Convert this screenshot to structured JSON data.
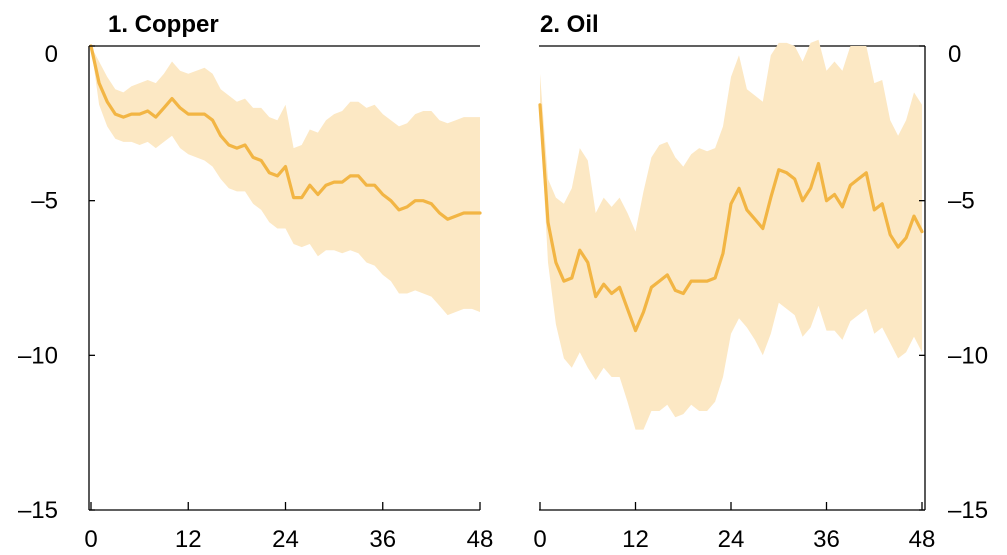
{
  "colors": {
    "line": "#F2B544",
    "band": "#FCE8C4",
    "axis": "#000000"
  },
  "chart_data": [
    {
      "type": "line",
      "title": "1. Copper",
      "y_axis_side": "left",
      "ylim": [
        -15,
        0
      ],
      "yticks": [
        0,
        -5,
        -10,
        -15
      ],
      "ytick_labels": [
        "0",
        "–5",
        "–10",
        "–15"
      ],
      "xlim": [
        0,
        48
      ],
      "xticks": [
        0,
        12,
        24,
        36,
        48
      ],
      "xtick_labels": [
        "0",
        "12",
        "24",
        "36",
        "48"
      ],
      "grid": false,
      "x": [
        0,
        1,
        2,
        3,
        4,
        5,
        6,
        7,
        8,
        9,
        10,
        11,
        12,
        13,
        14,
        15,
        16,
        17,
        18,
        19,
        20,
        21,
        22,
        23,
        24,
        25,
        26,
        27,
        28,
        29,
        30,
        31,
        32,
        33,
        34,
        35,
        36,
        37,
        38,
        39,
        40,
        41,
        42,
        43,
        44,
        45,
        46,
        47,
        48
      ],
      "series": [
        {
          "values": [
            0,
            -1.2,
            -1.8,
            -2.2,
            -2.3,
            -2.2,
            -2.2,
            -2.1,
            -2.3,
            -2.0,
            -1.7,
            -2.0,
            -2.2,
            -2.2,
            -2.2,
            -2.4,
            -2.9,
            -3.2,
            -3.3,
            -3.2,
            -3.6,
            -3.7,
            -4.1,
            -4.2,
            -3.9,
            -4.9,
            -4.9,
            -4.5,
            -4.8,
            -4.5,
            -4.4,
            -4.4,
            -4.2,
            -4.2,
            -4.5,
            -4.5,
            -4.8,
            -5.0,
            -5.3,
            -5.2,
            -5.0,
            -5.0,
            -5.1,
            -5.4,
            -5.6,
            -5.5,
            -5.4,
            -5.4,
            -5.4
          ],
          "lower": [
            0,
            -1.9,
            -2.6,
            -3.0,
            -3.1,
            -3.1,
            -3.2,
            -3.1,
            -3.3,
            -3.1,
            -2.9,
            -3.3,
            -3.5,
            -3.6,
            -3.7,
            -3.9,
            -4.3,
            -4.6,
            -4.7,
            -4.7,
            -5.1,
            -5.3,
            -5.7,
            -5.9,
            -5.9,
            -6.4,
            -6.5,
            -6.4,
            -6.8,
            -6.6,
            -6.6,
            -6.7,
            -6.6,
            -6.7,
            -7.0,
            -7.1,
            -7.4,
            -7.6,
            -8.0,
            -8.0,
            -7.9,
            -8.0,
            -8.1,
            -8.4,
            -8.7,
            -8.6,
            -8.5,
            -8.5,
            -8.6
          ],
          "upper": [
            0,
            -0.5,
            -1.0,
            -1.4,
            -1.5,
            -1.3,
            -1.2,
            -1.1,
            -1.2,
            -0.9,
            -0.5,
            -0.8,
            -0.9,
            -0.8,
            -0.7,
            -0.9,
            -1.4,
            -1.6,
            -1.8,
            -1.7,
            -2.0,
            -2.0,
            -2.3,
            -2.4,
            -1.9,
            -3.3,
            -3.2,
            -2.7,
            -2.8,
            -2.4,
            -2.2,
            -2.1,
            -1.8,
            -1.8,
            -2.0,
            -1.9,
            -2.2,
            -2.4,
            -2.6,
            -2.5,
            -2.2,
            -2.1,
            -2.1,
            -2.4,
            -2.5,
            -2.4,
            -2.3,
            -2.3,
            -2.3
          ]
        }
      ]
    },
    {
      "type": "line",
      "title": "2. Oil",
      "y_axis_side": "right",
      "ylim": [
        -15,
        0
      ],
      "yticks": [
        0,
        -5,
        -10,
        -15
      ],
      "ytick_labels": [
        "0",
        "–5",
        "–10",
        "–15"
      ],
      "xlim": [
        0,
        48
      ],
      "xticks": [
        0,
        12,
        24,
        36,
        48
      ],
      "xtick_labels": [
        "0",
        "12",
        "24",
        "36",
        "48"
      ],
      "grid": false,
      "x": [
        0,
        1,
        2,
        3,
        4,
        5,
        6,
        7,
        8,
        9,
        10,
        11,
        12,
        13,
        14,
        15,
        16,
        17,
        18,
        19,
        20,
        21,
        22,
        23,
        24,
        25,
        26,
        27,
        28,
        29,
        30,
        31,
        32,
        33,
        34,
        35,
        36,
        37,
        38,
        39,
        40,
        41,
        42,
        43,
        44,
        45,
        46,
        47,
        48
      ],
      "series": [
        {
          "values": [
            -1.9,
            -5.7,
            -7.0,
            -7.6,
            -7.5,
            -6.6,
            -7.0,
            -8.1,
            -7.7,
            -8.0,
            -7.8,
            -8.5,
            -9.2,
            -8.6,
            -7.8,
            -7.6,
            -7.4,
            -7.9,
            -8.0,
            -7.6,
            -7.6,
            -7.6,
            -7.5,
            -6.7,
            -5.1,
            -4.6,
            -5.3,
            -5.6,
            -5.9,
            -4.9,
            -4.0,
            -4.1,
            -4.3,
            -5.0,
            -4.6,
            -3.8,
            -5.0,
            -4.8,
            -5.2,
            -4.5,
            -4.3,
            -4.1,
            -5.3,
            -5.1,
            -6.1,
            -6.5,
            -6.2,
            -5.5,
            -6.0
          ],
          "lower": [
            -2.2,
            -7.0,
            -9.0,
            -10.1,
            -10.4,
            -9.9,
            -10.4,
            -10.8,
            -10.4,
            -10.7,
            -10.7,
            -11.5,
            -12.4,
            -12.4,
            -11.8,
            -11.8,
            -11.6,
            -12.0,
            -11.9,
            -11.6,
            -11.8,
            -11.8,
            -11.5,
            -10.7,
            -9.3,
            -8.8,
            -9.1,
            -9.5,
            -10.0,
            -9.3,
            -8.3,
            -8.5,
            -8.7,
            -9.4,
            -9.1,
            -8.4,
            -9.2,
            -9.2,
            -9.5,
            -8.9,
            -8.7,
            -8.5,
            -9.3,
            -9.1,
            -9.6,
            -10.1,
            -9.9,
            -9.4,
            -9.9
          ],
          "upper": [
            -0.9,
            -4.3,
            -4.9,
            -5.1,
            -4.6,
            -3.3,
            -3.7,
            -5.4,
            -4.9,
            -5.2,
            -4.9,
            -5.4,
            -6.0,
            -4.7,
            -3.6,
            -3.2,
            -3.1,
            -3.6,
            -3.9,
            -3.5,
            -3.3,
            -3.4,
            -3.3,
            -2.6,
            -1.0,
            -0.3,
            -1.4,
            -1.6,
            -1.8,
            -0.3,
            0.1,
            0.1,
            0,
            -0.5,
            0.1,
            0.2,
            -0.8,
            -0.5,
            -0.8,
            0,
            0,
            0,
            -1.2,
            -1.1,
            -2.4,
            -2.9,
            -2.4,
            -1.5,
            -1.9
          ]
        }
      ]
    }
  ]
}
